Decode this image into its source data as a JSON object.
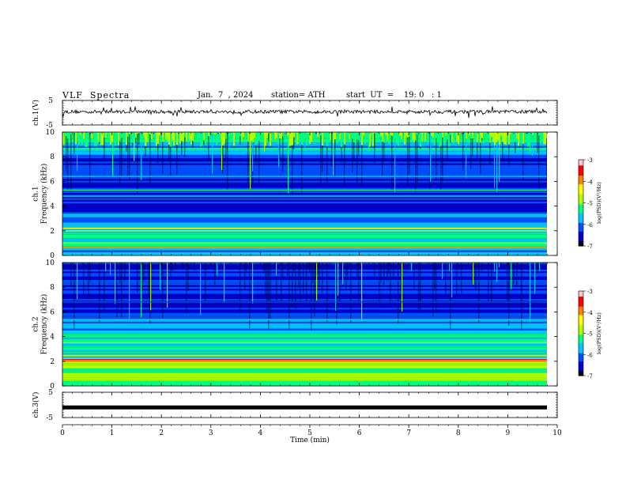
{
  "header": {
    "title": "VLF  Spectra",
    "date": "Jan.  7  , 2024",
    "station": "station= ATH",
    "start": "start  UT  =    19: 0   : 1"
  },
  "chart_data": [
    {
      "type": "line",
      "ylabel": "ch.1(V)",
      "ylim": [
        -5,
        5
      ],
      "yticks": [
        "5",
        "-5"
      ],
      "xlim": [
        0,
        10
      ],
      "note": "waveform near 0 V with spikes"
    },
    {
      "type": "heatmap",
      "ylabel": "ch.1\nFrequency (kHz)",
      "ylim": [
        0,
        10
      ],
      "yticks": [
        "0",
        "2",
        "4",
        "6",
        "8",
        "10"
      ],
      "xlim": [
        0,
        10
      ],
      "colorbar": {
        "label": "log(PSD)(V²/Hz)",
        "range": [
          -7,
          -3
        ],
        "ticks": [
          "-3",
          "-4",
          "-5",
          "-6",
          "-7"
        ]
      }
    },
    {
      "type": "heatmap",
      "ylabel": "ch.2\nFrequency (kHz)",
      "ylim": [
        0,
        10
      ],
      "yticks": [
        "0",
        "2",
        "4",
        "6",
        "8",
        "10"
      ],
      "xlim": [
        0,
        10
      ],
      "colorbar": {
        "label": "log(PSD)(V²/Hz)",
        "range": [
          -7,
          -3
        ],
        "ticks": [
          "-3",
          "-4",
          "-5",
          "-6",
          "-7"
        ]
      }
    },
    {
      "type": "line",
      "ylabel": "ch.3(V)",
      "ylim": [
        -5,
        5
      ],
      "yticks": [
        "5",
        "-5"
      ],
      "xlim": [
        0,
        10
      ],
      "xlabel": "Time  (min)",
      "xticks": [
        "0",
        "1",
        "2",
        "3",
        "4",
        "5",
        "6",
        "7",
        "8",
        "9",
        "10"
      ],
      "note": "flat signal near -1 V"
    }
  ],
  "colors": {
    "colormap": [
      "#000000",
      "#0000c8",
      "#0050ff",
      "#00c8ff",
      "#00ff80",
      "#b0ff00",
      "#ffff00",
      "#ff8000",
      "#ff0000",
      "#ffc8c8"
    ]
  }
}
